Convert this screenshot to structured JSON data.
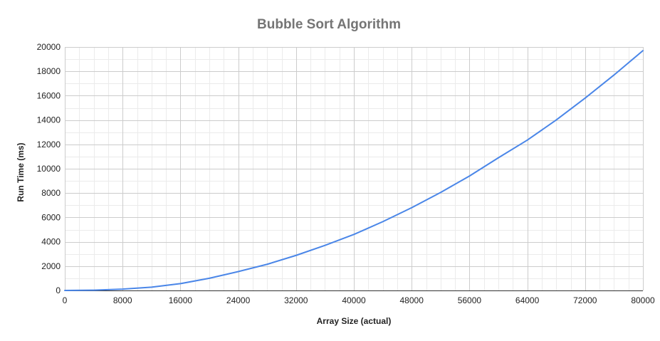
{
  "chart_data": {
    "type": "line",
    "title": "Bubble Sort Algorithm",
    "xlabel": "Array Size (actual)",
    "ylabel": "Run Time (ms)",
    "xlim": [
      0,
      80000
    ],
    "ylim": [
      0,
      20000
    ],
    "x_ticks": [
      0,
      8000,
      16000,
      24000,
      32000,
      40000,
      48000,
      56000,
      64000,
      72000,
      80000
    ],
    "y_ticks": [
      0,
      2000,
      4000,
      6000,
      8000,
      10000,
      12000,
      14000,
      16000,
      18000,
      20000
    ],
    "grid": true,
    "legend": "none",
    "series": [
      {
        "color": "#4a86e8",
        "x": [
          0,
          4000,
          8000,
          12000,
          16000,
          20000,
          24000,
          28000,
          32000,
          36000,
          40000,
          44000,
          48000,
          52000,
          56000,
          60000,
          64000,
          68000,
          72000,
          76000,
          80000
        ],
        "values": [
          0,
          25,
          110,
          270,
          560,
          1000,
          1550,
          2150,
          2880,
          3700,
          4600,
          5650,
          6800,
          8050,
          9400,
          10900,
          12350,
          14000,
          15800,
          17700,
          19700
        ]
      }
    ]
  }
}
